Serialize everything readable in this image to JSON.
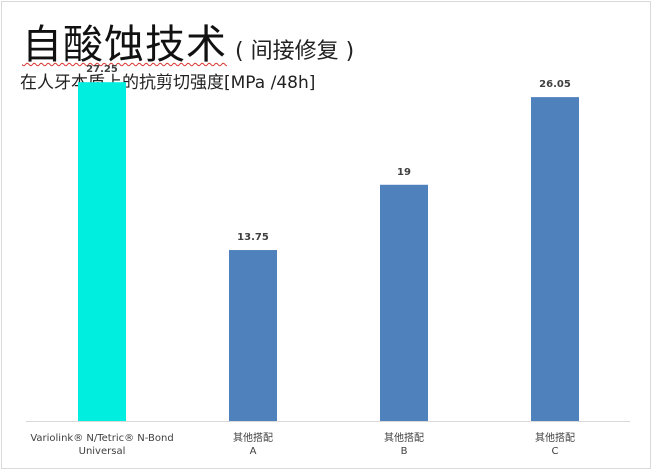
{
  "title": {
    "main": "自酸蚀技术",
    "sub": "( 间接修复 )"
  },
  "subtitle": "在人牙本质上的抗剪切强度[MPa /48h]",
  "colors": {
    "highlight": "#00eee0",
    "bar": "#4f81bd",
    "axis": "#d9d9d9"
  },
  "chart_data": {
    "type": "bar",
    "categories": [
      [
        "Variolink® N/Tetric® N-Bond",
        "Universal"
      ],
      [
        "其他搭配",
        "A"
      ],
      [
        "其他搭配",
        "B"
      ],
      [
        "其他搭配",
        "C"
      ]
    ],
    "values": [
      27.25,
      13.75,
      19,
      26.05
    ],
    "value_labels": [
      "27.25",
      "13.75",
      "19",
      "26.05"
    ],
    "bar_colors": [
      "#00eee0",
      "#4f81bd",
      "#4f81bd",
      "#4f81bd"
    ],
    "ylim": [
      0,
      30
    ],
    "grid": false,
    "title": "",
    "xlabel": "",
    "ylabel": ""
  }
}
